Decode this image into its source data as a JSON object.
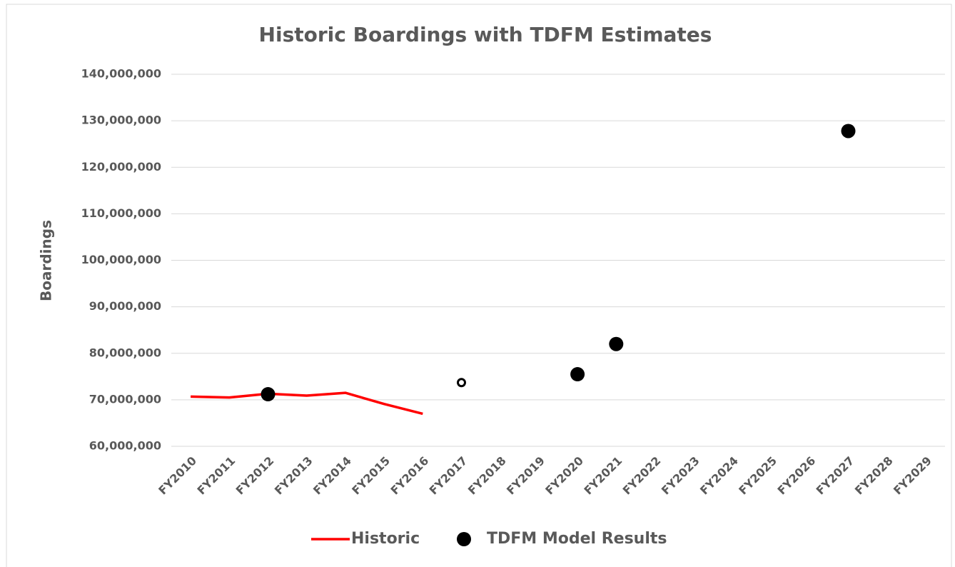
{
  "chart_data": {
    "type": "line",
    "title": "Historic Boardings with TDFM Estimates",
    "ylabel": "Boardings",
    "categories": [
      "FY2010",
      "FY2011",
      "FY2012",
      "FY2013",
      "FY2014",
      "FY2015",
      "FY2016",
      "FY2017",
      "FY2018",
      "FY2019",
      "FY2020",
      "FY2021",
      "FY2022",
      "FY2023",
      "FY2024",
      "FY2025",
      "FY2026",
      "FY2027",
      "FY2028",
      "FY2029"
    ],
    "series": [
      {
        "name": "Historic",
        "color": "#ff0000",
        "style": "line",
        "values": [
          70700000,
          70500000,
          71300000,
          70900000,
          71500000,
          69100000,
          67000000,
          null,
          null,
          null,
          null,
          null,
          null,
          null,
          null,
          null,
          null,
          null,
          null,
          null
        ]
      },
      {
        "name": "TDFM Model Results",
        "color": "#000000",
        "style": "marker",
        "values": [
          null,
          null,
          71200000,
          null,
          null,
          null,
          null,
          73700000,
          null,
          null,
          75500000,
          82000000,
          null,
          null,
          null,
          null,
          null,
          127800000,
          null,
          null
        ],
        "hollow": [
          false,
          false,
          false,
          false,
          false,
          false,
          false,
          true,
          false,
          false,
          false,
          false,
          false,
          false,
          false,
          false,
          false,
          false,
          false,
          false
        ]
      }
    ],
    "ylim": [
      60000000,
      140000000
    ],
    "yticks": [
      {
        "value": 60000000,
        "label": "60,000,000"
      },
      {
        "value": 70000000,
        "label": "70,000,000"
      },
      {
        "value": 80000000,
        "label": "80,000,000"
      },
      {
        "value": 90000000,
        "label": "90,000,000"
      },
      {
        "value": 100000000,
        "label": "100,000,000"
      },
      {
        "value": 110000000,
        "label": "110,000,000"
      },
      {
        "value": 120000000,
        "label": "120,000,000"
      },
      {
        "value": 130000000,
        "label": "130,000,000"
      },
      {
        "value": 140000000,
        "label": "140,000,000"
      }
    ],
    "grid": true,
    "legend": "bottom"
  }
}
